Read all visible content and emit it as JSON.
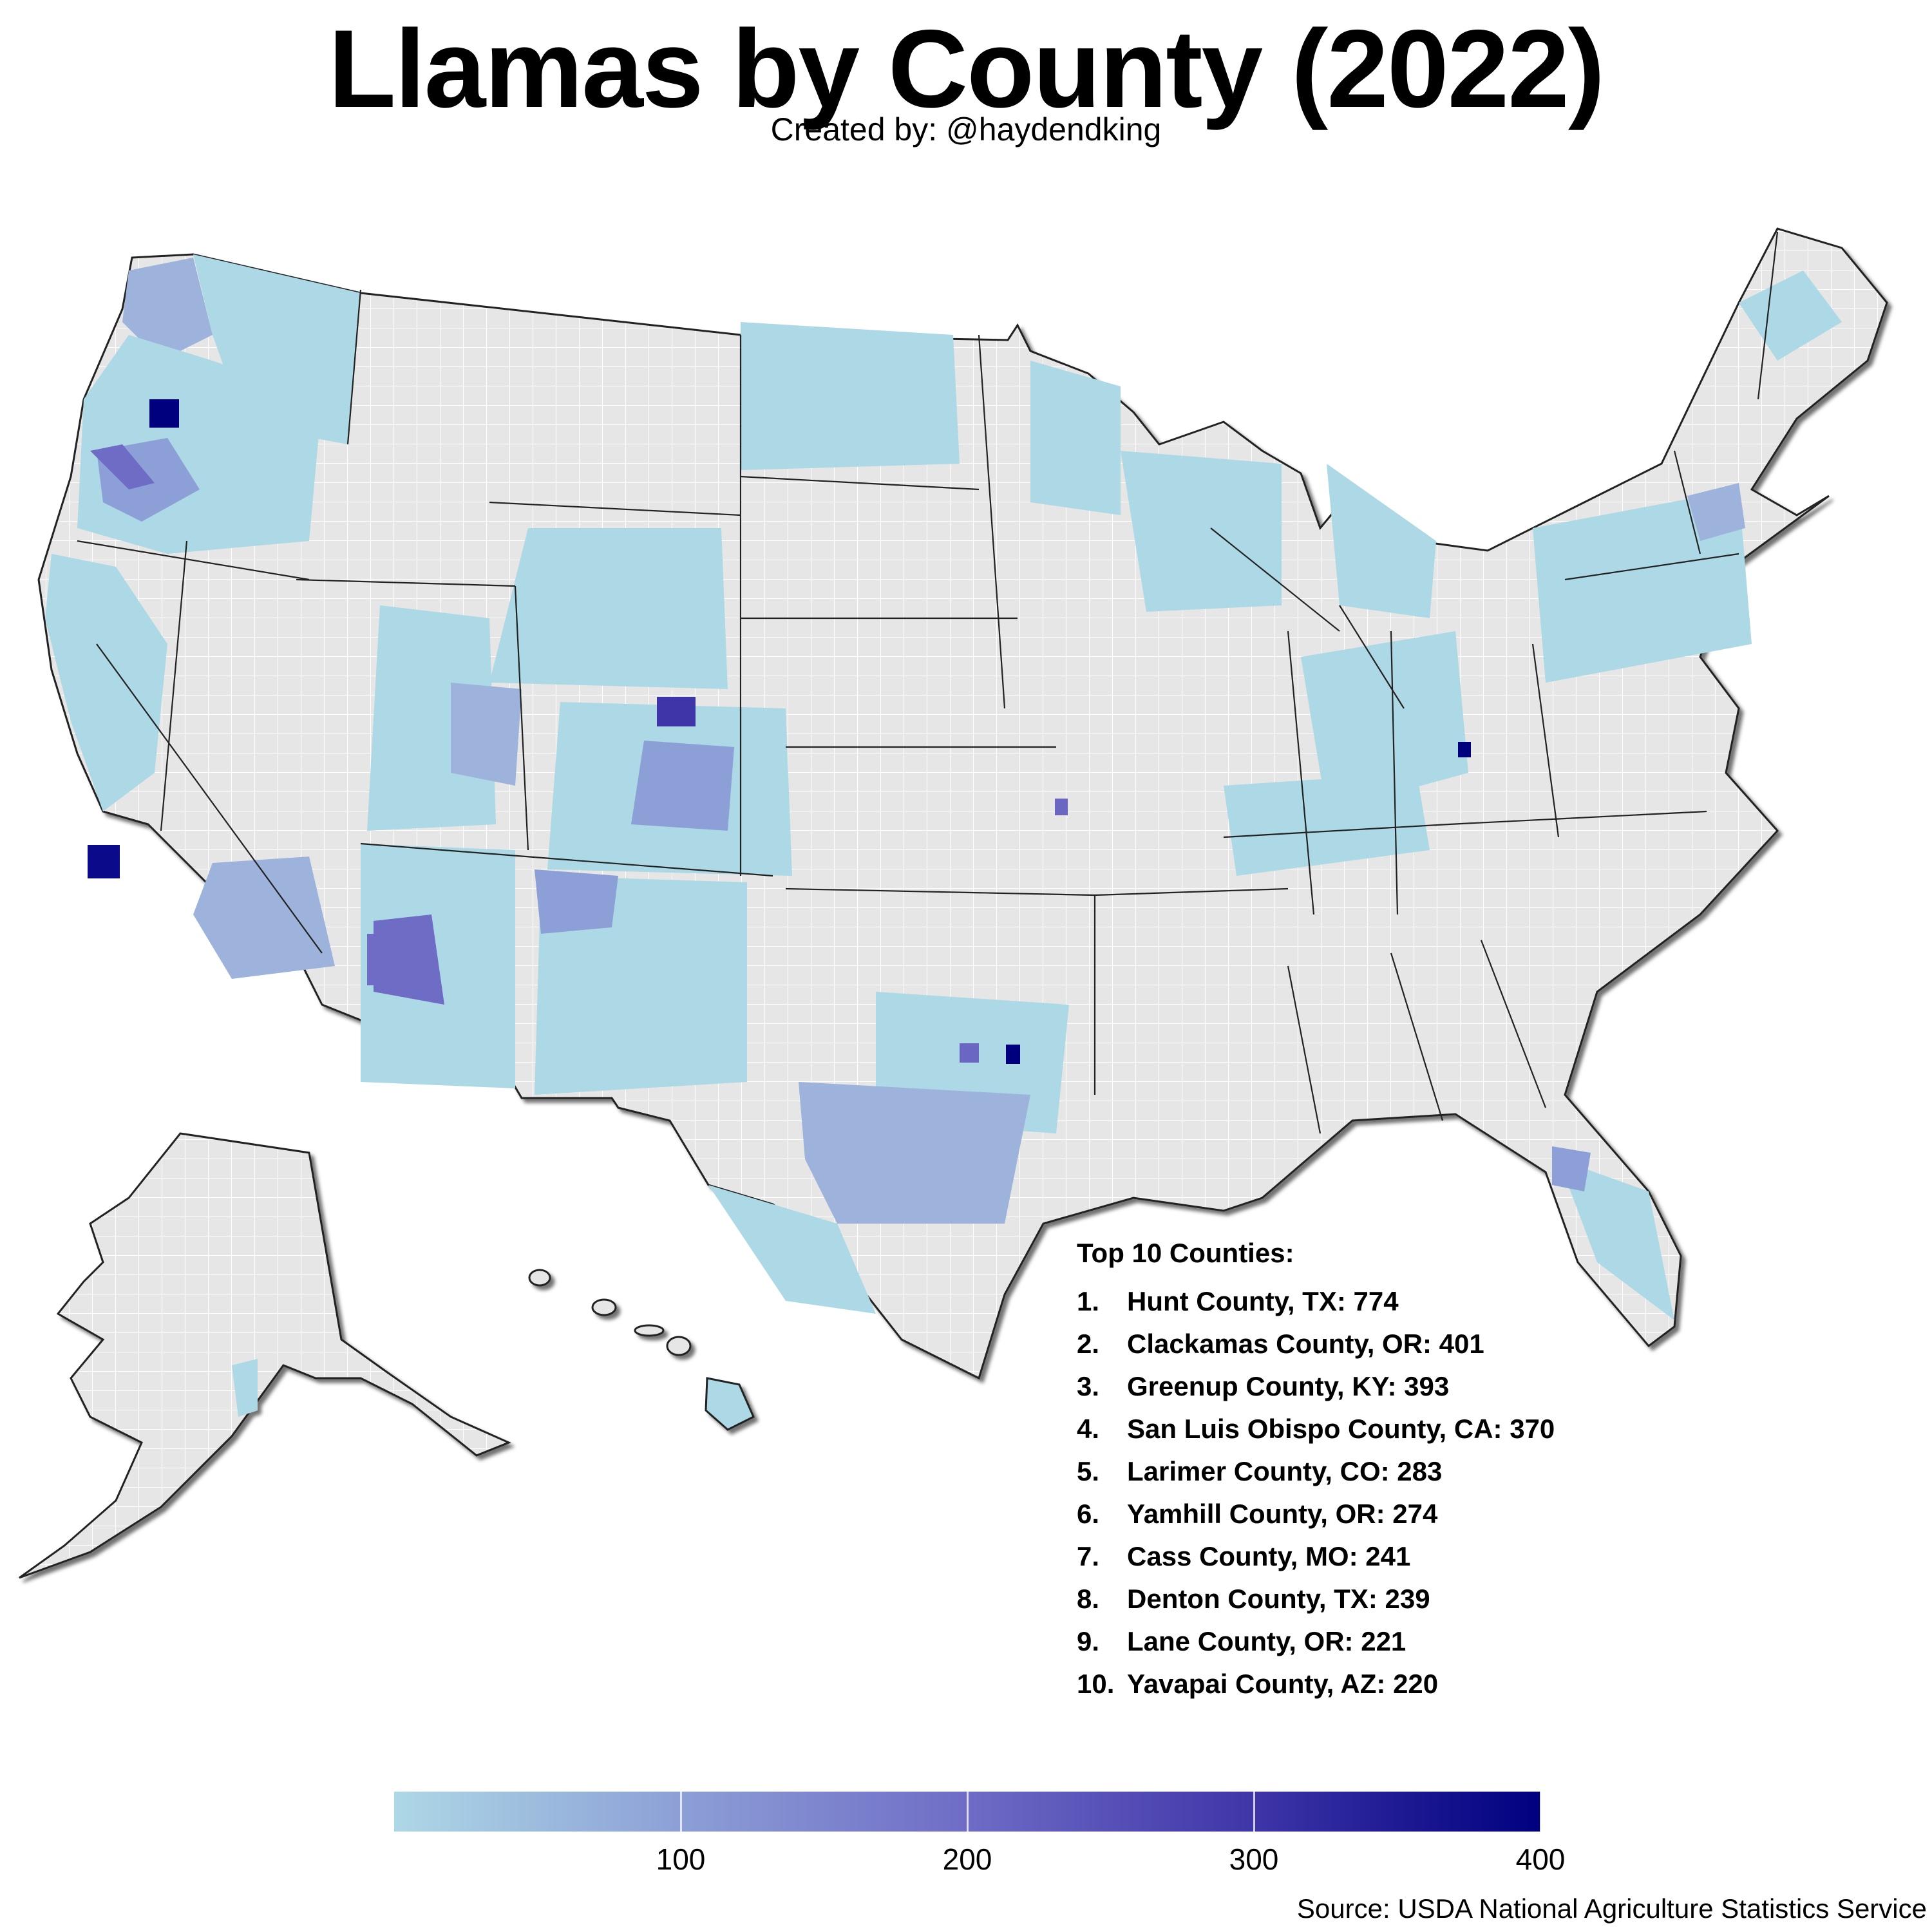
{
  "title": "Llamas by County (2022)",
  "subtitle": "Created by: @haydendking",
  "top10": {
    "header": "Top 10 Counties:",
    "items": [
      {
        "rank": "1.",
        "text": "Hunt County, TX: 774"
      },
      {
        "rank": "2.",
        "text": "Clackamas County, OR: 401"
      },
      {
        "rank": "3.",
        "text": "Greenup County, KY: 393"
      },
      {
        "rank": "4.",
        "text": "San Luis Obispo County, CA: 370"
      },
      {
        "rank": "5.",
        "text": "Larimer County, CO: 283"
      },
      {
        "rank": "6.",
        "text": "Yamhill County, OR: 274"
      },
      {
        "rank": "7.",
        "text": "Cass County, MO: 241"
      },
      {
        "rank": "8.",
        "text": "Denton County, TX: 239"
      },
      {
        "rank": "9.",
        "text": "Lane County, OR: 221"
      },
      {
        "rank": "10.",
        "text": "Yavapai County, AZ: 220"
      }
    ]
  },
  "legend": {
    "ticks": [
      "100",
      "200",
      "300",
      "400"
    ],
    "colors": [
      "#add8e6",
      "#00007f"
    ],
    "range": [
      0,
      400
    ]
  },
  "source": "Source: USDA National Agriculture Statistics Service",
  "colors": {
    "no_data": "#e6e6e6",
    "low": "#add8e6",
    "high": "#00007f",
    "state_border": "#222222"
  }
}
